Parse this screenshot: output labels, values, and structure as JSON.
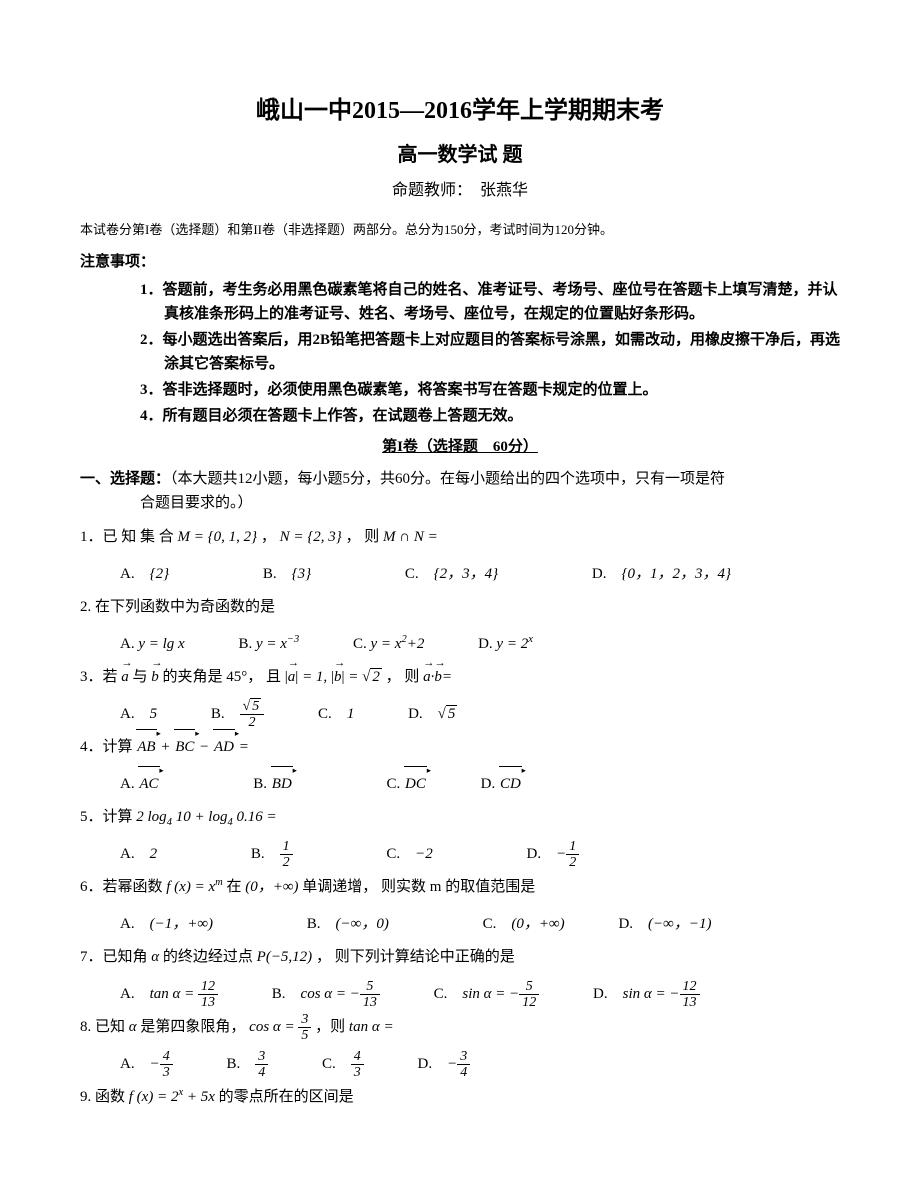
{
  "title": {
    "main": "峨山一中2015—2016学年上学期期末考",
    "sub": "高一数学试 题",
    "author_label": "命题教师：",
    "author_name": "张燕华"
  },
  "exam_desc": "本试卷分第I卷（选择题）和第II卷（非选择题）两部分。总分为150分，考试时间为120分钟。",
  "notice": {
    "head": "注意事项：",
    "items": [
      "1．答题前，考生务必用黑色碳素笔将自己的姓名、准考证号、考场号、座位号在答题卡上填写清楚，并认真核准条形码上的准考证号、姓名、考场号、座位号，在规定的位置贴好条形码。",
      "2．每小题选出答案后，用2B铅笔把答题卡上对应题目的答案标号涂黑，如需改动，用橡皮擦干净后，再选涂其它答案标号。",
      "3．答非选择题时，必须使用黑色碳素笔，将答案书写在答题卡规定的位置上。",
      "4．所有题目必须在答题卡上作答，在试题卷上答题无效。"
    ]
  },
  "section_head": "第I卷（选择题　60分）",
  "part1_intro": {
    "bold": "一、选择题：",
    "rest1": "（本大题共12小题，每小题5分，共60分。在每小题给出的四个选项中，只有一项是符",
    "rest2": "合题目要求的。）"
  },
  "q1": {
    "stem1": "1．已 知 集 合 ",
    "M": "M = {0, 1, 2}",
    "sep1": " ，",
    "N": "N = {2, 3}",
    "sep2": " ， 则 ",
    "eq": "M ∩ N =",
    "optA": "{2}",
    "optB": "{3}",
    "optC": "{2，3，4}",
    "optD": "{0，1，2，3，4}"
  },
  "q2": {
    "stem": "2. 在下列函数中为奇函数的是",
    "optA_pre": "y = lg x",
    "optB_pre": "y = x",
    "optB_sup": "−3",
    "optC_pre": "y = x",
    "optC_sup": "2",
    "optC_post": "+2",
    "optD_pre": "y = 2",
    "optD_sup": "x"
  },
  "q3": {
    "stem1": "3．若 ",
    "a": "a",
    "stem2": " 与 ",
    "b": "b",
    "stem3": " 的夹角是 45°， 且 ",
    "cond_a": "a",
    "cond_eq": " = 1, ",
    "cond_b": "b",
    "cond_val": "2",
    "stem4": " ， 则 ",
    "dot_a": "a",
    "dot_b": "b",
    "dot_eq": "=",
    "optA": "5",
    "optB_num": "5",
    "optB_den": "2",
    "optC": "1",
    "optD": "5"
  },
  "q4": {
    "stem": "4．计算",
    "AB": "AB",
    "BC": "BC",
    "AD": "AD",
    "optA": "AC",
    "optB": "BD",
    "optC": "DC",
    "optD": "CD"
  },
  "q5": {
    "stem": "5．计算",
    "expr1": "2 log",
    "b1": "4",
    "a1": " 10 + log",
    "b2": "4",
    "a2": " 0.16 =",
    "optA": "2",
    "optB_num": "1",
    "optB_den": "2",
    "optC": "−2",
    "optD_num": "1",
    "optD_den": "2"
  },
  "q6": {
    "stem1": "6．若幂函数 ",
    "fx": "f (x) = x",
    "m": "m",
    "stem2": " 在 ",
    "interval": "(0，+∞)",
    "stem3": " 单调递增， 则实数 m 的取值范围是",
    "optA": "(−1，+∞)",
    "optB": "(−∞，0)",
    "optC": "(0，+∞)",
    "optD": "(−∞，−1)"
  },
  "q7": {
    "stem1": "7．已知角 ",
    "alpha": "α",
    "stem2": " 的终边经过点 ",
    "P": "P(−5,12)",
    "stem3": " ， 则下列计算结论中正确的是",
    "A_lhs": "tan α = ",
    "A_num": "12",
    "A_den": "13",
    "B_lhs": "cos α = −",
    "B_num": "5",
    "B_den": "13",
    "C_lhs": "sin α = −",
    "C_num": "5",
    "C_den": "12",
    "D_lhs": "sin α = −",
    "D_num": "12",
    "D_den": "13"
  },
  "q8": {
    "stem1": "8. 已知 ",
    "alpha": "α",
    "stem2": " 是第四象限角，",
    "cos": "cos α = ",
    "num": "3",
    "den": "5",
    "stem3": " ，则 ",
    "tan": "tan α =",
    "A_num": "4",
    "A_den": "3",
    "B_num": "3",
    "B_den": "4",
    "C_num": "4",
    "C_den": "3",
    "D_num": "3",
    "D_den": "4"
  },
  "q9": {
    "stem1": "9. 函数 ",
    "fx": "f (x) = 2",
    "sup": "x",
    "plus": " + 5x",
    "stem2": " 的零点所在的区间是"
  }
}
